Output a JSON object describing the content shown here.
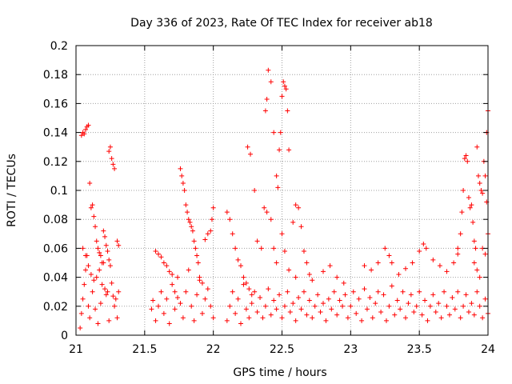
{
  "chart_data": {
    "type": "scatter",
    "title": "Day 336 of 2023, Rate Of TEC Index for receiver ab18",
    "xlabel": "GPS time / hours",
    "ylabel": "ROTI / TECUs",
    "xlim": [
      21,
      24
    ],
    "ylim": [
      0,
      0.2
    ],
    "grid": true,
    "marker": "plus",
    "marker_color": "#ff0000",
    "xticks": [
      "21",
      "21.5",
      "22",
      "22.5",
      "23",
      "23.5",
      "24"
    ],
    "yticks": [
      "0",
      "0.02",
      "0.04",
      "0.06",
      "0.08",
      "0.1",
      "0.12",
      "0.14",
      "0.16",
      "0.18",
      "0.2"
    ],
    "series": [
      {
        "name": "ab18",
        "points": [
          [
            21.03,
            0.005
          ],
          [
            21.04,
            0.015
          ],
          [
            21.05,
            0.025
          ],
          [
            21.06,
            0.035
          ],
          [
            21.07,
            0.045
          ],
          [
            21.08,
            0.055
          ],
          [
            21.09,
            0.02
          ],
          [
            21.1,
            0.012
          ],
          [
            21.12,
            0.03
          ],
          [
            21.14,
            0.018
          ],
          [
            21.15,
            0.04
          ],
          [
            21.16,
            0.008
          ],
          [
            21.18,
            0.022
          ],
          [
            21.2,
            0.05
          ],
          [
            21.22,
            0.028
          ],
          [
            21.24,
            0.01
          ],
          [
            21.26,
            0.036
          ],
          [
            21.28,
            0.02
          ],
          [
            21.3,
            0.012
          ],
          [
            21.31,
            0.03
          ],
          [
            21.04,
            0.138
          ],
          [
            21.05,
            0.14
          ],
          [
            21.06,
            0.139
          ],
          [
            21.07,
            0.142
          ],
          [
            21.08,
            0.144
          ],
          [
            21.09,
            0.145
          ],
          [
            21.1,
            0.105
          ],
          [
            21.11,
            0.088
          ],
          [
            21.12,
            0.09
          ],
          [
            21.13,
            0.082
          ],
          [
            21.14,
            0.075
          ],
          [
            21.15,
            0.065
          ],
          [
            21.16,
            0.06
          ],
          [
            21.17,
            0.057
          ],
          [
            21.18,
            0.055
          ],
          [
            21.19,
            0.05
          ],
          [
            21.2,
            0.072
          ],
          [
            21.21,
            0.068
          ],
          [
            21.22,
            0.062
          ],
          [
            21.23,
            0.058
          ],
          [
            21.24,
            0.052
          ],
          [
            21.25,
            0.048
          ],
          [
            21.24,
            0.127
          ],
          [
            21.25,
            0.13
          ],
          [
            21.26,
            0.122
          ],
          [
            21.27,
            0.118
          ],
          [
            21.28,
            0.115
          ],
          [
            21.05,
            0.06
          ],
          [
            21.07,
            0.055
          ],
          [
            21.09,
            0.048
          ],
          [
            21.11,
            0.042
          ],
          [
            21.13,
            0.038
          ],
          [
            21.17,
            0.045
          ],
          [
            21.19,
            0.035
          ],
          [
            21.21,
            0.032
          ],
          [
            21.23,
            0.03
          ],
          [
            21.27,
            0.027
          ],
          [
            21.29,
            0.025
          ],
          [
            21.3,
            0.065
          ],
          [
            21.31,
            0.062
          ],
          [
            21.58,
            0.01
          ],
          [
            21.6,
            0.02
          ],
          [
            21.62,
            0.03
          ],
          [
            21.64,
            0.015
          ],
          [
            21.66,
            0.025
          ],
          [
            21.68,
            0.008
          ],
          [
            21.7,
            0.035
          ],
          [
            21.72,
            0.018
          ],
          [
            21.74,
            0.04
          ],
          [
            21.76,
            0.022
          ],
          [
            21.78,
            0.012
          ],
          [
            21.8,
            0.03
          ],
          [
            21.82,
            0.045
          ],
          [
            21.84,
            0.02
          ],
          [
            21.86,
            0.01
          ],
          [
            21.88,
            0.028
          ],
          [
            21.9,
            0.038
          ],
          [
            21.92,
            0.015
          ],
          [
            21.94,
            0.025
          ],
          [
            21.96,
            0.032
          ],
          [
            21.98,
            0.02
          ],
          [
            22.0,
            0.012
          ],
          [
            21.58,
            0.058
          ],
          [
            21.6,
            0.056
          ],
          [
            21.62,
            0.054
          ],
          [
            21.64,
            0.05
          ],
          [
            21.66,
            0.048
          ],
          [
            21.68,
            0.044
          ],
          [
            21.7,
            0.042
          ],
          [
            21.76,
            0.115
          ],
          [
            21.77,
            0.11
          ],
          [
            21.78,
            0.105
          ],
          [
            21.79,
            0.1
          ],
          [
            21.8,
            0.09
          ],
          [
            21.81,
            0.085
          ],
          [
            21.82,
            0.08
          ],
          [
            21.83,
            0.078
          ],
          [
            21.84,
            0.075
          ],
          [
            21.85,
            0.072
          ],
          [
            21.86,
            0.065
          ],
          [
            21.87,
            0.06
          ],
          [
            21.88,
            0.055
          ],
          [
            21.89,
            0.05
          ],
          [
            21.94,
            0.066
          ],
          [
            21.96,
            0.07
          ],
          [
            21.98,
            0.072
          ],
          [
            21.99,
            0.08
          ],
          [
            22.0,
            0.088
          ],
          [
            21.55,
            0.018
          ],
          [
            21.56,
            0.024
          ],
          [
            21.72,
            0.03
          ],
          [
            21.74,
            0.026
          ],
          [
            21.9,
            0.04
          ],
          [
            21.92,
            0.036
          ],
          [
            22.1,
            0.01
          ],
          [
            22.12,
            0.02
          ],
          [
            22.14,
            0.03
          ],
          [
            22.16,
            0.015
          ],
          [
            22.18,
            0.025
          ],
          [
            22.2,
            0.008
          ],
          [
            22.22,
            0.035
          ],
          [
            22.24,
            0.018
          ],
          [
            22.26,
            0.012
          ],
          [
            22.28,
            0.022
          ],
          [
            22.3,
            0.03
          ],
          [
            22.32,
            0.016
          ],
          [
            22.34,
            0.026
          ],
          [
            22.36,
            0.012
          ],
          [
            22.38,
            0.02
          ],
          [
            22.4,
            0.032
          ],
          [
            22.42,
            0.014
          ],
          [
            22.44,
            0.024
          ],
          [
            22.46,
            0.018
          ],
          [
            22.48,
            0.028
          ],
          [
            22.5,
            0.012
          ],
          [
            22.52,
            0.02
          ],
          [
            22.54,
            0.03
          ],
          [
            22.56,
            0.016
          ],
          [
            22.58,
            0.022
          ],
          [
            22.6,
            0.01
          ],
          [
            22.62,
            0.026
          ],
          [
            22.64,
            0.018
          ],
          [
            22.66,
            0.03
          ],
          [
            22.68,
            0.014
          ],
          [
            22.7,
            0.024
          ],
          [
            22.72,
            0.012
          ],
          [
            22.74,
            0.02
          ],
          [
            22.76,
            0.028
          ],
          [
            22.78,
            0.016
          ],
          [
            22.8,
            0.022
          ],
          [
            22.82,
            0.01
          ],
          [
            22.84,
            0.025
          ],
          [
            22.86,
            0.018
          ],
          [
            22.88,
            0.03
          ],
          [
            22.9,
            0.014
          ],
          [
            22.92,
            0.024
          ],
          [
            22.94,
            0.02
          ],
          [
            22.96,
            0.028
          ],
          [
            22.98,
            0.012
          ],
          [
            22.1,
            0.085
          ],
          [
            22.12,
            0.08
          ],
          [
            22.14,
            0.07
          ],
          [
            22.16,
            0.06
          ],
          [
            22.18,
            0.052
          ],
          [
            22.2,
            0.048
          ],
          [
            22.22,
            0.04
          ],
          [
            22.24,
            0.036
          ],
          [
            22.26,
            0.032
          ],
          [
            22.28,
            0.028
          ],
          [
            22.25,
            0.13
          ],
          [
            22.27,
            0.125
          ],
          [
            22.3,
            0.1
          ],
          [
            22.32,
            0.065
          ],
          [
            22.35,
            0.06
          ],
          [
            22.37,
            0.088
          ],
          [
            22.39,
            0.085
          ],
          [
            22.38,
            0.155
          ],
          [
            22.39,
            0.163
          ],
          [
            22.4,
            0.183
          ],
          [
            22.42,
            0.175
          ],
          [
            22.44,
            0.14
          ],
          [
            22.46,
            0.11
          ],
          [
            22.47,
            0.102
          ],
          [
            22.48,
            0.128
          ],
          [
            22.49,
            0.14
          ],
          [
            22.5,
            0.165
          ],
          [
            22.51,
            0.175
          ],
          [
            22.52,
            0.172
          ],
          [
            22.53,
            0.17
          ],
          [
            22.54,
            0.155
          ],
          [
            22.55,
            0.128
          ],
          [
            22.58,
            0.078
          ],
          [
            22.6,
            0.09
          ],
          [
            22.62,
            0.088
          ],
          [
            22.64,
            0.075
          ],
          [
            22.66,
            0.058
          ],
          [
            22.68,
            0.05
          ],
          [
            22.7,
            0.042
          ],
          [
            22.72,
            0.038
          ],
          [
            22.42,
            0.08
          ],
          [
            22.44,
            0.06
          ],
          [
            22.46,
            0.05
          ],
          [
            22.5,
            0.07
          ],
          [
            22.52,
            0.058
          ],
          [
            22.55,
            0.045
          ],
          [
            22.6,
            0.04
          ],
          [
            22.8,
            0.044
          ],
          [
            22.85,
            0.048
          ],
          [
            22.9,
            0.04
          ],
          [
            22.95,
            0.036
          ],
          [
            23.0,
            0.02
          ],
          [
            23.02,
            0.03
          ],
          [
            23.04,
            0.015
          ],
          [
            23.06,
            0.025
          ],
          [
            23.08,
            0.01
          ],
          [
            23.1,
            0.032
          ],
          [
            23.12,
            0.018
          ],
          [
            23.14,
            0.026
          ],
          [
            23.16,
            0.012
          ],
          [
            23.18,
            0.022
          ],
          [
            23.2,
            0.03
          ],
          [
            23.22,
            0.016
          ],
          [
            23.24,
            0.028
          ],
          [
            23.26,
            0.01
          ],
          [
            23.28,
            0.02
          ],
          [
            23.3,
            0.034
          ],
          [
            23.32,
            0.014
          ],
          [
            23.34,
            0.024
          ],
          [
            23.36,
            0.018
          ],
          [
            23.38,
            0.03
          ],
          [
            23.4,
            0.012
          ],
          [
            23.42,
            0.022
          ],
          [
            23.44,
            0.028
          ],
          [
            23.46,
            0.016
          ],
          [
            23.48,
            0.02
          ],
          [
            23.5,
            0.03
          ],
          [
            23.52,
            0.014
          ],
          [
            23.54,
            0.024
          ],
          [
            23.56,
            0.01
          ],
          [
            23.58,
            0.02
          ],
          [
            23.6,
            0.028
          ],
          [
            23.62,
            0.016
          ],
          [
            23.64,
            0.022
          ],
          [
            23.66,
            0.012
          ],
          [
            23.68,
            0.03
          ],
          [
            23.7,
            0.02
          ],
          [
            23.72,
            0.014
          ],
          [
            23.74,
            0.026
          ],
          [
            23.76,
            0.018
          ],
          [
            23.78,
            0.03
          ],
          [
            23.8,
            0.012
          ],
          [
            23.82,
            0.02
          ],
          [
            23.84,
            0.028
          ],
          [
            23.86,
            0.016
          ],
          [
            23.88,
            0.022
          ],
          [
            23.9,
            0.014
          ],
          [
            23.92,
            0.03
          ],
          [
            23.94,
            0.02
          ],
          [
            23.96,
            0.012
          ],
          [
            23.98,
            0.025
          ],
          [
            24.0,
            0.015
          ],
          [
            23.1,
            0.048
          ],
          [
            23.15,
            0.045
          ],
          [
            23.2,
            0.05
          ],
          [
            23.25,
            0.06
          ],
          [
            23.28,
            0.055
          ],
          [
            23.3,
            0.05
          ],
          [
            23.35,
            0.042
          ],
          [
            23.4,
            0.046
          ],
          [
            23.45,
            0.05
          ],
          [
            23.5,
            0.058
          ],
          [
            23.53,
            0.063
          ],
          [
            23.55,
            0.06
          ],
          [
            23.6,
            0.052
          ],
          [
            23.65,
            0.048
          ],
          [
            23.7,
            0.044
          ],
          [
            23.75,
            0.05
          ],
          [
            23.78,
            0.056
          ],
          [
            23.78,
            0.06
          ],
          [
            23.8,
            0.07
          ],
          [
            23.81,
            0.085
          ],
          [
            23.82,
            0.1
          ],
          [
            23.83,
            0.122
          ],
          [
            23.84,
            0.124
          ],
          [
            23.85,
            0.12
          ],
          [
            23.86,
            0.095
          ],
          [
            23.87,
            0.088
          ],
          [
            23.88,
            0.09
          ],
          [
            23.89,
            0.078
          ],
          [
            23.9,
            0.065
          ],
          [
            23.91,
            0.06
          ],
          [
            23.92,
            0.13
          ],
          [
            23.93,
            0.11
          ],
          [
            23.94,
            0.105
          ],
          [
            23.95,
            0.1
          ],
          [
            23.96,
            0.098
          ],
          [
            23.97,
            0.12
          ],
          [
            23.98,
            0.11
          ],
          [
            23.99,
            0.14
          ],
          [
            24.0,
            0.155
          ],
          [
            23.9,
            0.05
          ],
          [
            23.92,
            0.045
          ],
          [
            23.94,
            0.04
          ],
          [
            23.96,
            0.06
          ],
          [
            23.98,
            0.056
          ],
          [
            24.0,
            0.07
          ],
          [
            23.99,
            0.092
          ]
        ]
      }
    ]
  }
}
